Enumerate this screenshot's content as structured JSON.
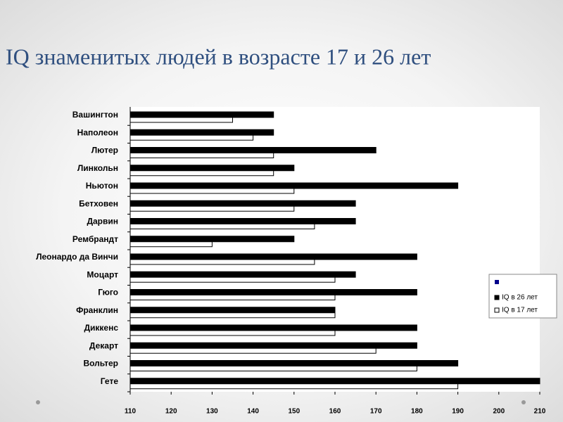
{
  "chart_data": {
    "type": "bar",
    "orientation": "horizontal",
    "title": "IQ знаменитых людей в возрасте 17 и 26 лет",
    "categories": [
      "Вашингтон",
      "Наполеон",
      "Лютер",
      "Линкольн",
      "Ньютон",
      "Бетховен",
      "Дарвин",
      "Рембрандт",
      "Леонардо да Винчи",
      "Моцарт",
      "Гюго",
      "Франклин",
      "Диккенс",
      "Декарт",
      "Вольтер",
      "Гете"
    ],
    "series": [
      {
        "name": "IQ в 26 лет",
        "color": "#000000",
        "values": [
          145,
          145,
          170,
          150,
          190,
          165,
          165,
          150,
          180,
          165,
          180,
          160,
          180,
          180,
          190,
          210
        ]
      },
      {
        "name": "IQ в 17 лет",
        "color": "#ffffff",
        "values": [
          135,
          140,
          145,
          145,
          150,
          150,
          155,
          130,
          155,
          160,
          160,
          160,
          160,
          170,
          180,
          190
        ]
      }
    ],
    "xlim": [
      110,
      210
    ],
    "xticks": [
      110,
      120,
      130,
      140,
      150,
      160,
      170,
      180,
      190,
      200,
      210
    ],
    "legend_position": "right"
  }
}
